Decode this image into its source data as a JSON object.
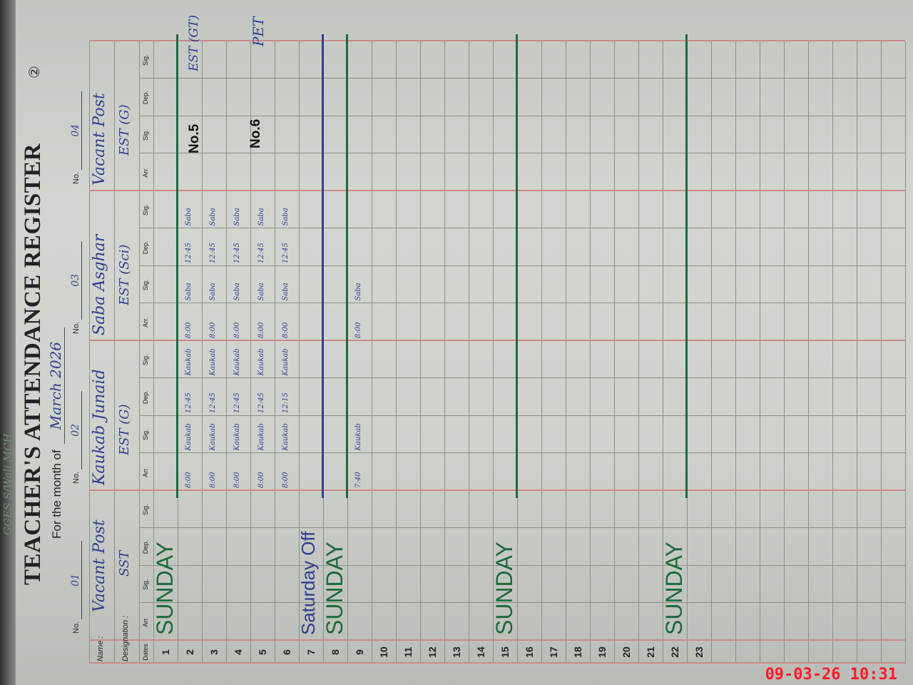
{
  "header": {
    "school_note": "GGES S/Wali MCH",
    "page_number": "②",
    "title": "TEACHER'S ATTENDANCE REGISTER",
    "month_label": "For the month of",
    "month_value": "March 2026"
  },
  "labels": {
    "no": "No.",
    "name": "Name :",
    "designation": "Designation :",
    "dates": "Dates",
    "arr": "Arr.",
    "sig": "Sig.",
    "dep": "Dep."
  },
  "teachers": [
    {
      "no": "01",
      "name": "Vacant Post",
      "designation": "SST"
    },
    {
      "no": "02",
      "name": "Kaukab Junaid",
      "designation": "EST (G)"
    },
    {
      "no": "03",
      "name": "Saba Asghar",
      "designation": "EST (Sci)"
    },
    {
      "no": "04",
      "name": "Vacant Post",
      "designation": "EST (G)"
    }
  ],
  "rows": [
    {
      "date": "1",
      "note": "SUNDAY"
    },
    {
      "date": "2",
      "cells": [
        [],
        [
          "8:00",
          "Kaukab",
          "12:45",
          "Kaukab"
        ],
        [
          "8:00",
          "Saba",
          "12:45",
          "Saba"
        ],
        []
      ]
    },
    {
      "date": "3",
      "cells": [
        [],
        [
          "8:00",
          "Kaukab",
          "12:45",
          "Kaukab"
        ],
        [
          "8:00",
          "Saba",
          "12:45",
          "Saba"
        ],
        []
      ]
    },
    {
      "date": "4",
      "cells": [
        [],
        [
          "8:00",
          "Kaukab",
          "12:45",
          "Kaukab"
        ],
        [
          "8:00",
          "Saba",
          "12:45",
          "Saba"
        ],
        []
      ]
    },
    {
      "date": "5",
      "cells": [
        [],
        [
          "8:00",
          "Kaukab",
          "12:45",
          "Kaukab"
        ],
        [
          "8:00",
          "Saba",
          "12:45",
          "Saba"
        ],
        []
      ]
    },
    {
      "date": "6",
      "cells": [
        [],
        [
          "8:00",
          "Kaukab",
          "12:15",
          "Kaukab"
        ],
        [
          "8:00",
          "Saba",
          "12:45",
          "Saba"
        ],
        []
      ]
    },
    {
      "date": "7",
      "note": "Saturday Off"
    },
    {
      "date": "8",
      "note": "SUNDAY"
    },
    {
      "date": "9",
      "cells": [
        [],
        [
          "7:40",
          "Kaukab"
        ],
        [
          "8:00",
          "Saba"
        ],
        []
      ]
    },
    {
      "date": "10"
    },
    {
      "date": "11"
    },
    {
      "date": "12"
    },
    {
      "date": "13"
    },
    {
      "date": "14"
    },
    {
      "date": "15",
      "note": "SUNDAY"
    },
    {
      "date": "16"
    },
    {
      "date": "17"
    },
    {
      "date": "18"
    },
    {
      "date": "19"
    },
    {
      "date": "20"
    },
    {
      "date": "21"
    },
    {
      "date": "22",
      "note": "SUNDAY"
    },
    {
      "date": "23"
    }
  ],
  "annotations": {
    "no5": "No.5",
    "no6": "No.6",
    "est_gt": "EST (GT)",
    "pet": "PET"
  },
  "colors": {
    "ink": "#2f3f8f",
    "sunday": "#1f6a3c",
    "grid_red": "#c98a8a",
    "timestamp": "#ff1a2a"
  },
  "timestamp": "09-03-26 10:31"
}
